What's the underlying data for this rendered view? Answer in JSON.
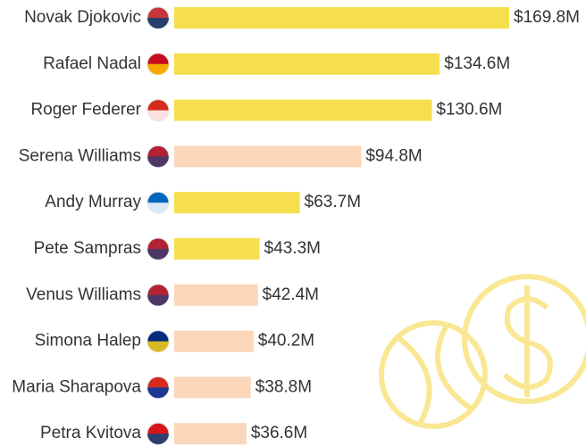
{
  "chart_data": {
    "type": "bar",
    "orientation": "horizontal",
    "categories": [
      "Novak Djokovic",
      "Rafael Nadal",
      "Roger Federer",
      "Serena Williams",
      "Andy Murray",
      "Pete Sampras",
      "Venus Williams",
      "Simona Halep",
      "Maria Sharapova",
      "Petra Kvitova"
    ],
    "values": [
      169.8,
      134.6,
      130.6,
      94.8,
      63.7,
      43.3,
      42.4,
      40.2,
      38.8,
      36.6
    ],
    "value_labels": [
      "$169.8M",
      "$134.6M",
      "$130.6M",
      "$94.8M",
      "$63.7M",
      "$43.3M",
      "$42.4M",
      "$40.2M",
      "$38.8M",
      "$36.6M"
    ],
    "colors": [
      "#f6df4e",
      "#f6df4e",
      "#f6df4e",
      "#fcd6b8",
      "#f6df4e",
      "#f6df4e",
      "#fcd6b8",
      "#fcd6b8",
      "#fcd6b8",
      "#fcd6b8"
    ]
  }
}
